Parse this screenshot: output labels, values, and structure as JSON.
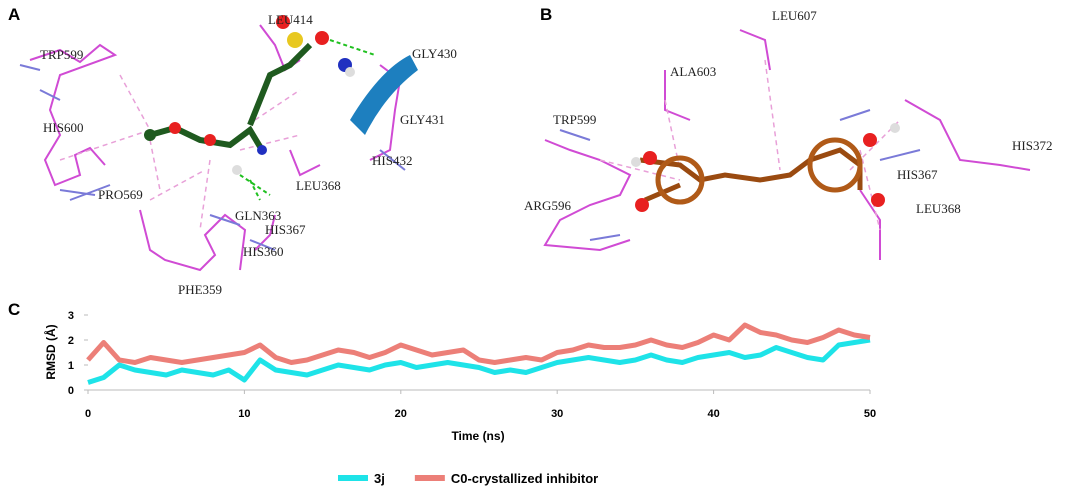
{
  "panel_a": {
    "label": "A",
    "residues": [
      "LEU414",
      "GLY430",
      "TRP599",
      "GLY431",
      "HIS600",
      "HIS432",
      "LEU368",
      "PRO569",
      "GLN363",
      "HIS367",
      "HIS360",
      "PHE359"
    ]
  },
  "panel_b": {
    "label": "B",
    "residues": [
      "LEU607",
      "ALA603",
      "TRP599",
      "HIS372",
      "HIS367",
      "ARG596",
      "LEU368"
    ]
  },
  "panel_c": {
    "label": "C"
  },
  "chart_data": {
    "type": "line",
    "xlabel": "Time (ns)",
    "ylabel": "RMSD (Å)",
    "x": [
      0,
      1,
      2,
      3,
      4,
      5,
      6,
      7,
      8,
      9,
      10,
      11,
      12,
      13,
      14,
      15,
      16,
      17,
      18,
      19,
      20,
      21,
      22,
      23,
      24,
      25,
      26,
      27,
      28,
      29,
      30,
      31,
      32,
      33,
      34,
      35,
      36,
      37,
      38,
      39,
      40,
      41,
      42,
      43,
      44,
      45,
      46,
      47,
      48,
      49,
      50
    ],
    "series": [
      {
        "name": "3j",
        "color": "#1ee3e8",
        "values": [
          0.3,
          0.5,
          1.0,
          0.8,
          0.7,
          0.6,
          0.8,
          0.7,
          0.6,
          0.8,
          0.4,
          1.2,
          0.8,
          0.7,
          0.6,
          0.8,
          1.0,
          0.9,
          0.8,
          1.0,
          1.1,
          0.9,
          1.0,
          1.1,
          1.0,
          0.9,
          0.7,
          0.8,
          0.7,
          0.9,
          1.1,
          1.2,
          1.3,
          1.2,
          1.1,
          1.2,
          1.4,
          1.2,
          1.1,
          1.3,
          1.4,
          1.5,
          1.3,
          1.4,
          1.7,
          1.5,
          1.3,
          1.2,
          1.8,
          1.9,
          2.0
        ]
      },
      {
        "name": "C0-crystallized inhibitor",
        "color": "#ec7f78",
        "values": [
          1.2,
          1.9,
          1.2,
          1.1,
          1.3,
          1.2,
          1.1,
          1.2,
          1.3,
          1.4,
          1.5,
          1.8,
          1.3,
          1.1,
          1.2,
          1.4,
          1.6,
          1.5,
          1.3,
          1.5,
          1.8,
          1.6,
          1.4,
          1.5,
          1.6,
          1.2,
          1.1,
          1.2,
          1.3,
          1.2,
          1.5,
          1.6,
          1.8,
          1.7,
          1.7,
          1.8,
          2.0,
          1.8,
          1.7,
          1.9,
          2.2,
          2.0,
          2.6,
          2.3,
          2.2,
          2.0,
          1.9,
          2.1,
          2.4,
          2.2,
          2.1
        ]
      }
    ],
    "xlim": [
      0,
      50
    ],
    "xticks": [
      0,
      10,
      20,
      30,
      40,
      50
    ],
    "ylim": [
      0,
      3
    ],
    "yticks": [
      0,
      1,
      2,
      3
    ]
  }
}
